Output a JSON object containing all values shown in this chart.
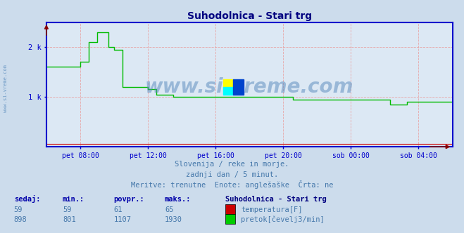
{
  "title": "Suhodolnica - Stari trg",
  "title_color": "#000080",
  "bg_color": "#ccdcec",
  "plot_bg_color": "#dce8f4",
  "grid_color": "#e8a0a0",
  "axis_color": "#0000cc",
  "tick_color": "#0000aa",
  "text_color": "#4477aa",
  "watermark": "www.si-vreme.com",
  "watermark_color": "#5588bb",
  "subtitle1": "Slovenija / reke in morje.",
  "subtitle2": "zadnji dan / 5 minut.",
  "subtitle3": "Meritve: trenutne  Enote: anglešaške  Črta: ne",
  "xtick_labels": [
    "pet 08:00",
    "pet 12:00",
    "pet 16:00",
    "pet 20:00",
    "sob 00:00",
    "sob 04:00"
  ],
  "ytick_labels": [
    "1 k",
    "2 k"
  ],
  "ytick_values": [
    1000,
    2000
  ],
  "ylim": [
    0,
    2500
  ],
  "xlim_start": 0,
  "xlim_end": 288,
  "xtick_positions": [
    24,
    72,
    120,
    168,
    216,
    264
  ],
  "legend_title": "Suhodolnica - Stari trg",
  "legend_entries": [
    "temperatura[F]",
    "pretok[čevelj3/min]"
  ],
  "legend_colors": [
    "#cc0000",
    "#00cc00"
  ],
  "table_headers": [
    "sedaj:",
    "min.:",
    "povpr.:",
    "maks.:"
  ],
  "table_row1": [
    "59",
    "59",
    "61",
    "65"
  ],
  "table_row2": [
    "898",
    "801",
    "1107",
    "1930"
  ],
  "flow_color": "#00bb00",
  "temp_color": "#cc0000",
  "spine_color": "#0000cc",
  "arrow_color": "#880000",
  "side_text": "www.si-vreme.com"
}
